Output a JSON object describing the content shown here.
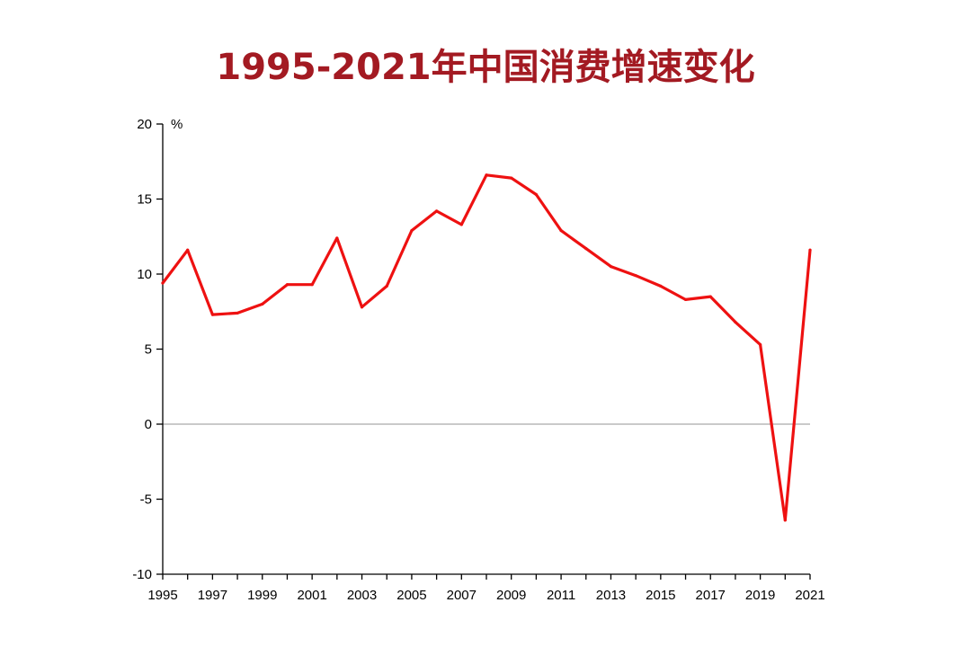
{
  "title": "1995-2021年中国消费增速变化",
  "colors": {
    "title": "#a31a22",
    "line": "#ee1111",
    "axis": "#000000",
    "zero_line": "#aaaaaa"
  },
  "chart_data": {
    "type": "line",
    "title": "1995-2021年中国消费增速变化",
    "ylabel": "%",
    "xlabel": "",
    "ylim": [
      -10,
      20
    ],
    "xlim": [
      1995,
      2021
    ],
    "yticks": [
      20,
      15,
      10,
      5,
      0,
      -5,
      -10
    ],
    "ytick_labels": [
      "20",
      "15",
      "10",
      "5",
      "0",
      "-5",
      "-10"
    ],
    "xticks": [
      1995,
      1997,
      1999,
      2001,
      2003,
      2005,
      2007,
      2009,
      2011,
      2013,
      2015,
      2017,
      2019,
      2021
    ],
    "xtick_labels": [
      "1995",
      "1997",
      "1999",
      "2001",
      "2003",
      "2005",
      "2007",
      "2009",
      "2011",
      "2013",
      "2015",
      "2017",
      "2019",
      "2021"
    ],
    "grid": false,
    "zero_reference_line": true,
    "series": [
      {
        "x": [
          1995,
          1996,
          1997,
          1998,
          1999,
          2000,
          2001,
          2002,
          2003,
          2004,
          2005,
          2006,
          2007,
          2008,
          2009,
          2010,
          2011,
          2012,
          2013,
          2014,
          2015,
          2016,
          2017,
          2018,
          2019,
          2020,
          2021
        ],
        "values": [
          9.4,
          11.6,
          7.3,
          7.4,
          8.0,
          9.3,
          9.3,
          12.4,
          7.8,
          9.2,
          12.9,
          14.2,
          13.3,
          16.6,
          16.4,
          15.3,
          12.9,
          11.7,
          10.5,
          9.9,
          9.2,
          8.3,
          8.5,
          6.8,
          5.3,
          -6.4,
          11.6
        ]
      }
    ]
  }
}
